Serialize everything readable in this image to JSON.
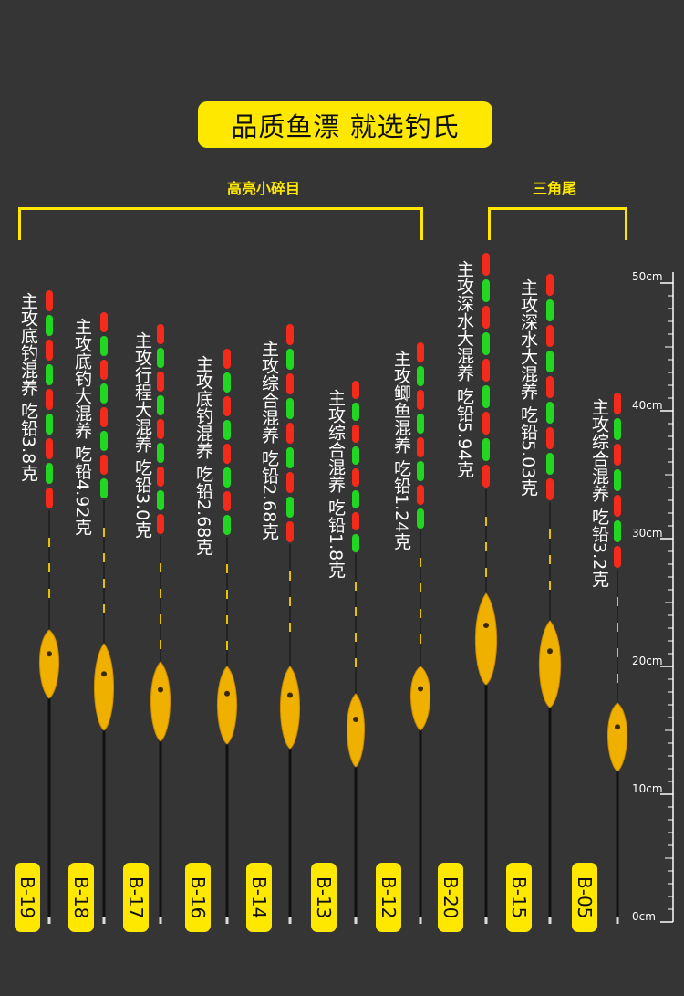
{
  "banner": {
    "text": "品质鱼漂 就选钓氏"
  },
  "groups": [
    {
      "label": "高亮小碎目"
    },
    {
      "label": "三角尾"
    }
  ],
  "floats": [
    {
      "code": "B-19",
      "desc": "主攻底钓混养 吃铅3.8克"
    },
    {
      "code": "B-18",
      "desc": "主攻底钓大混养 吃铅4.92克"
    },
    {
      "code": "B-17",
      "desc": "主攻行程大混养 吃铅3.0克"
    },
    {
      "code": "B-16",
      "desc": "主攻底钓混养 吃铅2.68克"
    },
    {
      "code": "B-14",
      "desc": "主攻综合混养 吃铅2.68克"
    },
    {
      "code": "B-13",
      "desc": "主攻综合混养 吃铅1.8克"
    },
    {
      "code": "B-12",
      "desc": "主攻鲫鱼混养 吃铅1.24克"
    },
    {
      "code": "B-20",
      "desc": "主攻深水大混养 吃铅5.94克"
    },
    {
      "code": "B-15",
      "desc": "主攻深水大混养 吃铅5.03克"
    },
    {
      "code": "B-05",
      "desc": "主攻综合混养 吃铅3.2克"
    }
  ],
  "scale": {
    "labels": [
      "50cm",
      "40cm",
      "30cm",
      "20cm",
      "10cm",
      "0cm"
    ]
  },
  "colors": {
    "accent": "#ffe800",
    "background": "#353535",
    "red": "#ff2a1a",
    "green": "#22e022"
  }
}
